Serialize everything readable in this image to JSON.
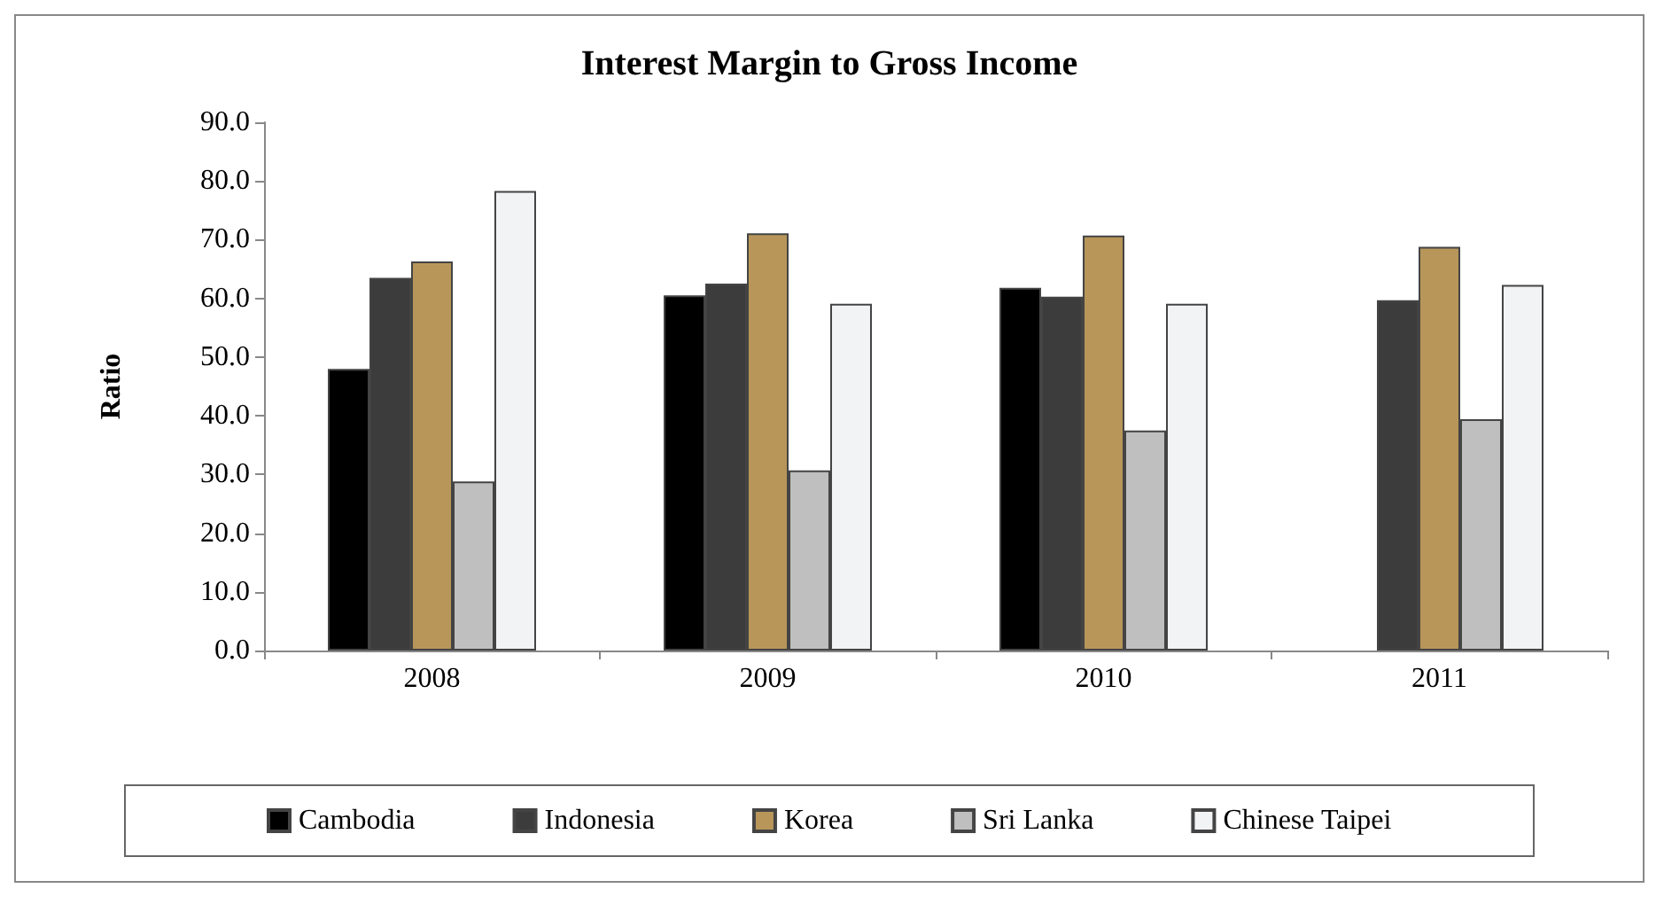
{
  "chart_data": {
    "type": "bar",
    "title": "Interest Margin to Gross Income",
    "ylabel": "Ratio",
    "categories": [
      "2008",
      "2009",
      "2010",
      "2011"
    ],
    "series": [
      {
        "name": "Cambodia",
        "color": "#000000",
        "values": [
          48.0,
          60.5,
          61.8,
          null
        ]
      },
      {
        "name": "Indonesia",
        "color": "#3c3c3c",
        "values": [
          63.5,
          62.5,
          60.3,
          59.7
        ]
      },
      {
        "name": "Korea",
        "color": "#b8965a",
        "values": [
          66.3,
          71.1,
          70.7,
          68.8
        ]
      },
      {
        "name": "Sri Lanka",
        "color": "#bfbfbf",
        "values": [
          28.8,
          30.7,
          37.5,
          39.4
        ]
      },
      {
        "name": "Chinese Taipei",
        "color": "#f2f3f5",
        "values": [
          78.3,
          59.1,
          59.1,
          62.3
        ]
      }
    ],
    "ylim": [
      0,
      90
    ],
    "yticks": [
      {
        "value": 0,
        "label": "0.0"
      },
      {
        "value": 10,
        "label": "10.0"
      },
      {
        "value": 20,
        "label": "20.0"
      },
      {
        "value": 30,
        "label": "30.0"
      },
      {
        "value": 40,
        "label": "40.0"
      },
      {
        "value": 50,
        "label": "50.0"
      },
      {
        "value": 60,
        "label": "60.0"
      },
      {
        "value": 70,
        "label": "70.0"
      },
      {
        "value": 80,
        "label": "80.0"
      },
      {
        "value": 90,
        "label": "90.0"
      }
    ],
    "grid": false,
    "legend": "bottom"
  }
}
